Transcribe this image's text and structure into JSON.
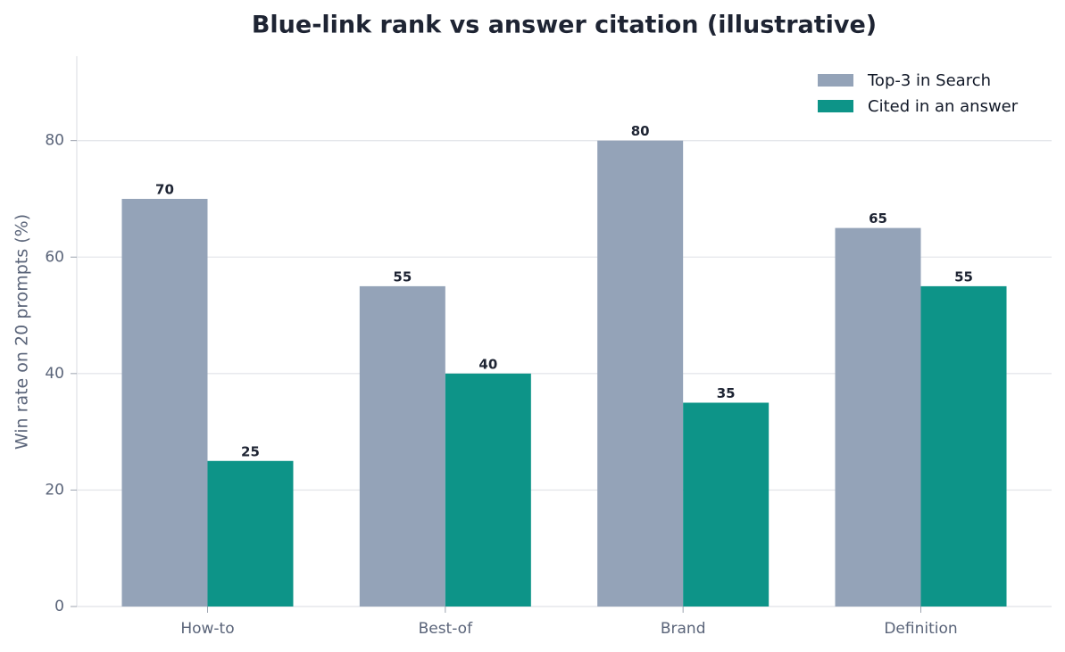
{
  "chart_data": {
    "type": "bar",
    "title": "Blue-link rank vs answer citation (illustrative)",
    "y_label": "Win rate on 20 prompts (%)",
    "categories": [
      "How-to",
      "Best-of",
      "Brand",
      "Definition"
    ],
    "series": [
      {
        "name": "Top-3 in Search",
        "color": "#94a3b8",
        "values": [
          70,
          55,
          80,
          65
        ]
      },
      {
        "name": "Cited in an answer",
        "color": "#0d9488",
        "values": [
          25,
          40,
          35,
          55
        ]
      }
    ],
    "ylim": [
      0,
      94.5
    ],
    "yticks": [
      0,
      20,
      40,
      60,
      80
    ],
    "grid": true,
    "legend": "upper-right",
    "value_labels_shown": true
  }
}
